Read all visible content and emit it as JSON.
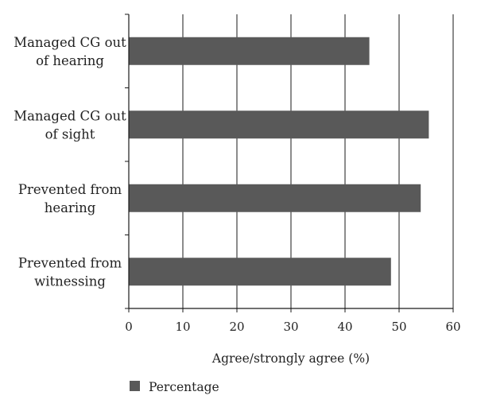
{
  "chart_data": {
    "type": "bar",
    "orientation": "horizontal",
    "categories": [
      [
        "Managed CG out",
        "of hearing"
      ],
      [
        "Managed CG out",
        "of sight"
      ],
      [
        "Prevented from",
        "hearing"
      ],
      [
        "Prevented from",
        "witnessing"
      ]
    ],
    "series": [
      {
        "name": "Percentage",
        "values": [
          44.5,
          55.5,
          54,
          48.5
        ],
        "color": "#595959"
      }
    ],
    "xlabel": "Agree/strongly agree (%)",
    "ylabel": "",
    "xlim": [
      0,
      60
    ],
    "xticks": [
      "0",
      "10",
      "20",
      "30",
      "40",
      "50",
      "60"
    ],
    "grid": "vertical",
    "legend": "bottom-left"
  }
}
